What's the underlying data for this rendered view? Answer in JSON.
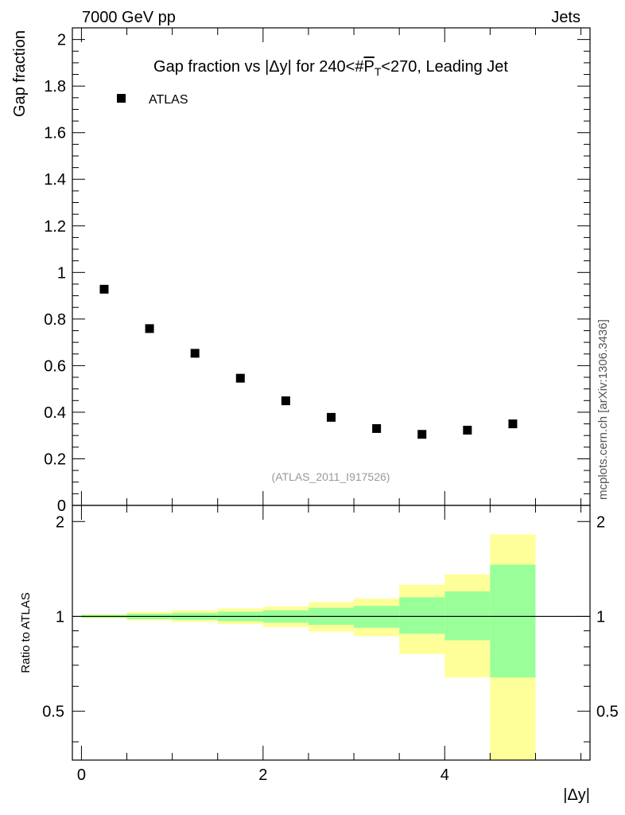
{
  "header": {
    "left_label": "7000 GeV pp",
    "right_label": "Jets",
    "side_label": "mcplots.cern.ch [arXiv:1306.3436]"
  },
  "chart_data": [
    {
      "type": "scatter",
      "title": "Gap fraction vs |Δy| for 240<#P̅T<270, Leading Jet",
      "title_parts": {
        "pre": "Gap fraction vs |Δy| for 240<#",
        "overline": "P",
        "sub": "T",
        "post": "<270, Leading Jet"
      },
      "ylabel": "Gap fraction",
      "xlim": [
        -0.1,
        5.6
      ],
      "ylim": [
        0,
        2.05
      ],
      "yticks": [
        {
          "v": 0,
          "label": "0"
        },
        {
          "v": 0.2,
          "label": "0.2"
        },
        {
          "v": 0.4,
          "label": "0.4"
        },
        {
          "v": 0.6,
          "label": "0.6"
        },
        {
          "v": 0.8,
          "label": "0.8"
        },
        {
          "v": 1.0,
          "label": "1"
        },
        {
          "v": 1.2,
          "label": "1.2"
        },
        {
          "v": 1.4,
          "label": "1.4"
        },
        {
          "v": 1.6,
          "label": "1.6"
        },
        {
          "v": 1.8,
          "label": "1.8"
        },
        {
          "v": 2.0,
          "label": "2"
        }
      ],
      "legend": [
        {
          "name": "ATLAS",
          "marker": "square",
          "color": "#000000"
        }
      ],
      "legend_position": "top-left",
      "series": [
        {
          "name": "ATLAS",
          "x": [
            0.25,
            0.75,
            1.25,
            1.75,
            2.25,
            2.75,
            3.25,
            3.75,
            4.25,
            4.75
          ],
          "y": [
            0.928,
            0.759,
            0.653,
            0.546,
            0.449,
            0.378,
            0.33,
            0.305,
            0.323,
            0.35
          ]
        }
      ],
      "annotation": "(ATLAS_2011_I917526)",
      "annotation_color": "#999999"
    },
    {
      "type": "area",
      "ylabel": "Ratio to ATLAS",
      "xlabel": "|Δy|",
      "xlim": [
        -0.1,
        5.6
      ],
      "ylim": [
        0.35,
        2.25
      ],
      "xticks": [
        {
          "v": 0,
          "label": "0"
        },
        {
          "v": 2,
          "label": "2"
        },
        {
          "v": 4,
          "label": "4"
        }
      ],
      "yticks": [
        {
          "v": 0.5,
          "label": "0.5"
        },
        {
          "v": 1,
          "label": "1"
        },
        {
          "v": 2,
          "label": "2"
        }
      ],
      "reference_line": 1,
      "bins": [
        {
          "lo": 0.0,
          "hi": 0.5,
          "inner": [
            0.99,
            1.01
          ],
          "outer": [
            0.985,
            1.015
          ]
        },
        {
          "lo": 0.5,
          "hi": 1.0,
          "inner": [
            0.98,
            1.02
          ],
          "outer": [
            0.97,
            1.035
          ]
        },
        {
          "lo": 1.0,
          "hi": 1.5,
          "inner": [
            0.975,
            1.025
          ],
          "outer": [
            0.96,
            1.045
          ]
        },
        {
          "lo": 1.5,
          "hi": 2.0,
          "inner": [
            0.965,
            1.035
          ],
          "outer": [
            0.945,
            1.06
          ]
        },
        {
          "lo": 2.0,
          "hi": 2.5,
          "inner": [
            0.955,
            1.045
          ],
          "outer": [
            0.925,
            1.075
          ]
        },
        {
          "lo": 2.5,
          "hi": 3.0,
          "inner": [
            0.94,
            1.065
          ],
          "outer": [
            0.895,
            1.11
          ]
        },
        {
          "lo": 3.0,
          "hi": 3.5,
          "inner": [
            0.92,
            1.08
          ],
          "outer": [
            0.865,
            1.14
          ]
        },
        {
          "lo": 3.5,
          "hi": 4.0,
          "inner": [
            0.88,
            1.15
          ],
          "outer": [
            0.76,
            1.26
          ]
        },
        {
          "lo": 4.0,
          "hi": 4.5,
          "inner": [
            0.84,
            1.2
          ],
          "outer": [
            0.64,
            1.36
          ]
        },
        {
          "lo": 4.5,
          "hi": 5.0,
          "inner": [
            0.64,
            1.46
          ],
          "outer": [
            0.3,
            1.82
          ]
        }
      ],
      "colors": {
        "inner": "#99ff99",
        "outer": "#ffff99",
        "line": "#000000"
      }
    }
  ]
}
